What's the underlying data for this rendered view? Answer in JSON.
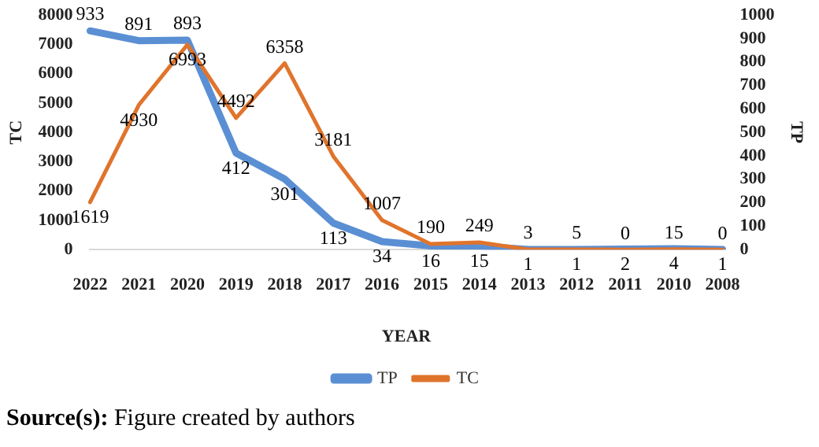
{
  "chart_data": {
    "type": "line",
    "xlabel": "YEAR",
    "ylabel": "TC",
    "y2label": "TP",
    "categories": [
      "2022",
      "2021",
      "2020",
      "2019",
      "2018",
      "2017",
      "2016",
      "2015",
      "2014",
      "2013",
      "2012",
      "2011",
      "2010",
      "2008"
    ],
    "series": [
      {
        "name": "TP",
        "color": "#5b8fd4",
        "axis": "y2",
        "values": [
          933,
          891,
          893,
          412,
          301,
          113,
          34,
          16,
          15,
          1,
          1,
          2,
          4,
          1
        ]
      },
      {
        "name": "TC",
        "color": "#e0742c",
        "axis": "y",
        "values": [
          1619,
          4930,
          6993,
          4492,
          6358,
          3181,
          1007,
          190,
          249,
          3,
          5,
          0,
          15,
          0
        ]
      }
    ],
    "ylim": [
      0,
      8000
    ],
    "yticks": [
      0,
      1000,
      2000,
      3000,
      4000,
      5000,
      6000,
      7000,
      8000
    ],
    "y2lim": [
      0,
      1000
    ],
    "y2ticks": [
      0,
      100,
      200,
      300,
      400,
      500,
      600,
      700,
      800,
      900,
      1000
    ],
    "grid": false,
    "legend": "bottom",
    "marker": "none",
    "line_style": "solid",
    "data_labels": true,
    "annotations": [
      "Source(s): Figure created by authors"
    ]
  }
}
